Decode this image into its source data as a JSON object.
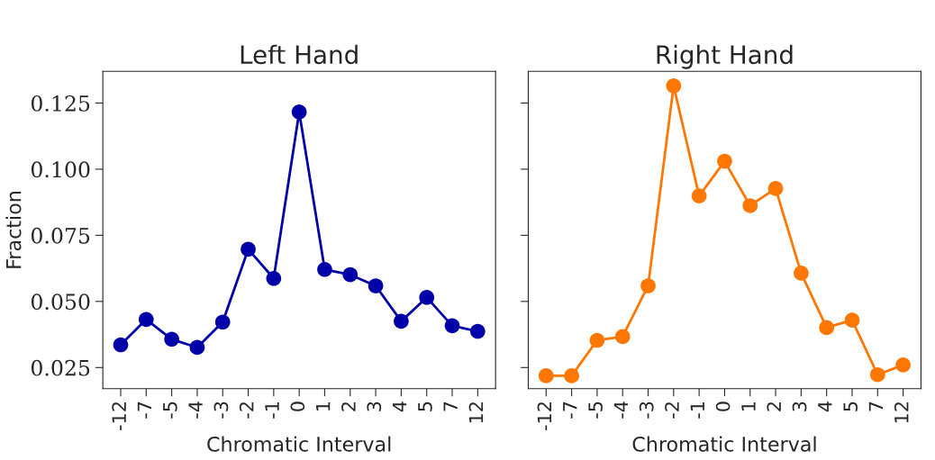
{
  "chart_data": [
    {
      "type": "line",
      "title": "Left Hand",
      "xlabel": "Chromatic Interval",
      "ylabel": "Fraction",
      "categories": [
        "-12",
        "-7",
        "-5",
        "-4",
        "-3",
        "-2",
        "-1",
        "0",
        "1",
        "2",
        "3",
        "4",
        "5",
        "7",
        "12"
      ],
      "series": [
        {
          "color": "#0000a8",
          "values": [
            0.0336,
            0.0432,
            0.0357,
            0.0326,
            0.0422,
            0.0697,
            0.0587,
            0.1216,
            0.0621,
            0.0601,
            0.0559,
            0.0425,
            0.0515,
            0.0408,
            0.0387
          ]
        }
      ],
      "ylim": [
        0.017,
        0.137
      ],
      "yticks": [
        {
          "value": 0.025,
          "label": "0.025"
        },
        {
          "value": 0.05,
          "label": "0.050"
        },
        {
          "value": 0.075,
          "label": "0.075"
        },
        {
          "value": 0.1,
          "label": "0.100"
        },
        {
          "value": 0.125,
          "label": "0.125"
        }
      ],
      "marker": "circle",
      "line_style": "solid",
      "grid": false,
      "legend": false
    },
    {
      "type": "line",
      "title": "Right Hand",
      "xlabel": "Chromatic Interval",
      "categories": [
        "-12",
        "-7",
        "-5",
        "-4",
        "-3",
        "-2",
        "-1",
        "0",
        "1",
        "2",
        "3",
        "4",
        "5",
        "7",
        "12"
      ],
      "series": [
        {
          "color": "#ff7700",
          "values": [
            0.0219,
            0.0219,
            0.0353,
            0.0367,
            0.0559,
            0.1315,
            0.0899,
            0.103,
            0.0862,
            0.0927,
            0.0607,
            0.0401,
            0.0429,
            0.0223,
            0.026
          ]
        }
      ],
      "ylim": [
        0.017,
        0.137
      ],
      "yticks": [
        {
          "value": 0.025,
          "label": null
        },
        {
          "value": 0.05,
          "label": null
        },
        {
          "value": 0.075,
          "label": null
        },
        {
          "value": 0.1,
          "label": null
        },
        {
          "value": 0.125,
          "label": null
        }
      ],
      "tick_labels": "x",
      "marker": "circle",
      "line_style": "solid",
      "grid": false,
      "legend": false
    }
  ]
}
